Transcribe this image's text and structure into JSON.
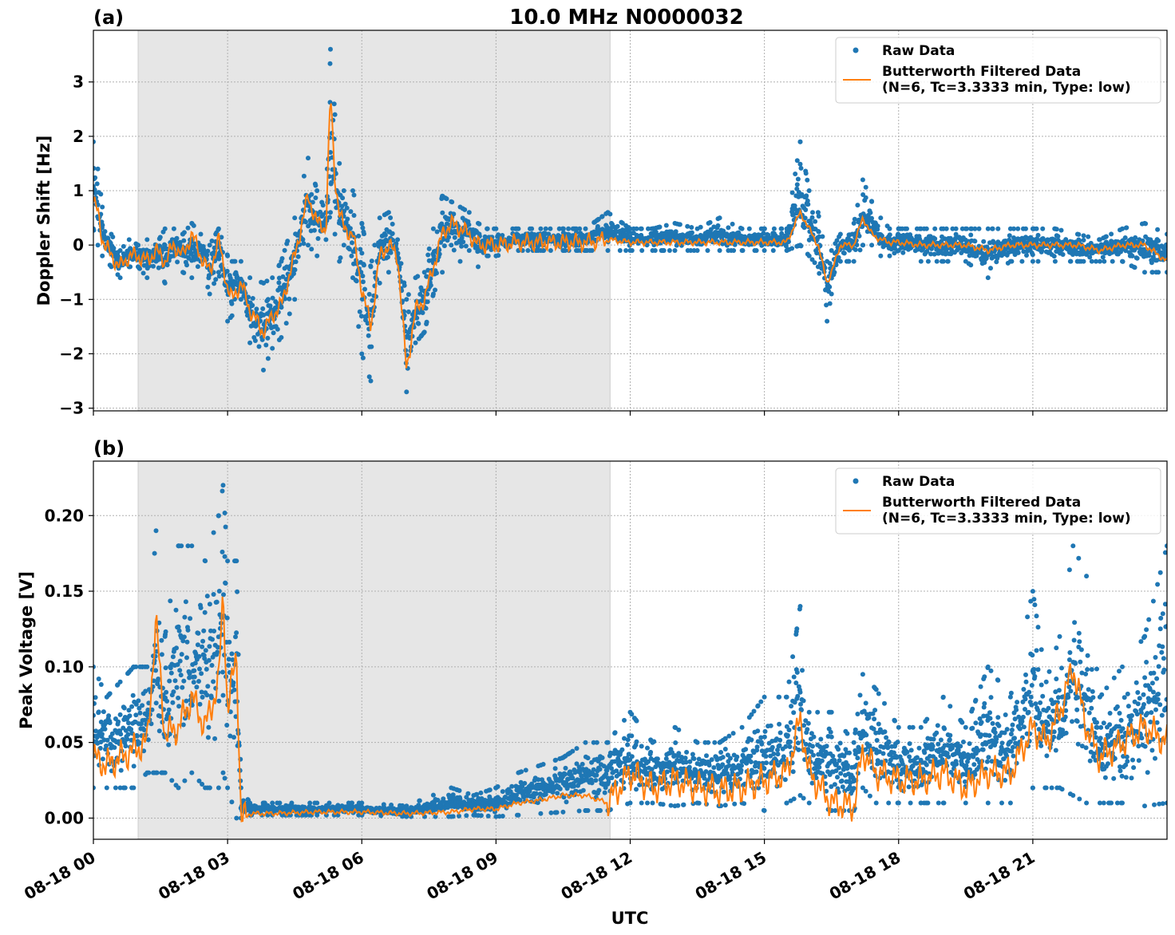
{
  "figure": {
    "title": "10.0 MHz N0000032",
    "xlabel": "UTC"
  },
  "chart_data": [
    {
      "panel_label": "(a)",
      "type": "scatter",
      "title": "10.0 MHz N0000032",
      "ylabel": "Doppler Shift [Hz]",
      "xlabel": "UTC",
      "xlim_hours": [
        0,
        24
      ],
      "ylim": [
        -3.05,
        3.95
      ],
      "yticks": [
        {
          "value": 3,
          "label": "3"
        },
        {
          "value": 2,
          "label": "2"
        },
        {
          "value": 1,
          "label": "1"
        },
        {
          "value": 0,
          "label": "0"
        },
        {
          "value": -1,
          "label": "−1"
        },
        {
          "value": -2,
          "label": "−2"
        },
        {
          "value": -3,
          "label": "−3"
        }
      ],
      "shaded_span_hours": [
        1.0,
        11.55
      ],
      "grid": true,
      "legend_placement": "top-right",
      "series": [
        {
          "name": "Raw Data",
          "kind": "scatter",
          "color": "#1f77b4",
          "x_hours": [
            0.0,
            0.1,
            0.2,
            0.4,
            0.6,
            0.8,
            1.0,
            1.2,
            1.4,
            1.6,
            1.8,
            2.0,
            2.2,
            2.4,
            2.6,
            2.8,
            3.0,
            3.1,
            3.3,
            3.5,
            3.8,
            4.0,
            4.2,
            4.5,
            4.8,
            5.0,
            5.2,
            5.3,
            5.4,
            5.5,
            5.6,
            5.8,
            6.0,
            6.2,
            6.4,
            6.6,
            6.8,
            7.0,
            7.2,
            7.4,
            7.6,
            7.8,
            8.0,
            8.2,
            8.4,
            8.6,
            8.8,
            9.0,
            9.5,
            10.0,
            10.5,
            11.0,
            11.5,
            12.0,
            12.5,
            13.0,
            13.5,
            14.0,
            14.5,
            15.0,
            15.5,
            15.8,
            16.0,
            16.2,
            16.4,
            16.5,
            16.7,
            17.0,
            17.2,
            17.4,
            17.6,
            17.8,
            18.0,
            18.5,
            19.0,
            19.5,
            20.0,
            20.5,
            21.0,
            21.5,
            22.0,
            22.5,
            23.0,
            23.5,
            24.0
          ],
          "y_low": [
            0.3,
            0.0,
            -0.2,
            -0.4,
            -0.6,
            -0.4,
            -0.4,
            -0.6,
            -0.3,
            -0.7,
            -0.2,
            -0.5,
            -0.6,
            -0.3,
            -0.9,
            -0.5,
            -1.4,
            -1.3,
            -1.0,
            -1.8,
            -2.3,
            -1.9,
            -1.7,
            -1.0,
            0.0,
            -0.2,
            0.1,
            0.6,
            0.2,
            -0.3,
            0.0,
            -0.6,
            -2.0,
            -2.5,
            -0.7,
            -0.5,
            -0.3,
            -2.7,
            -1.8,
            -1.6,
            -0.9,
            -0.5,
            0.0,
            -0.3,
            -0.1,
            -0.4,
            -0.2,
            -0.2,
            -0.1,
            -0.1,
            -0.1,
            -0.1,
            -0.1,
            -0.1,
            -0.1,
            -0.1,
            -0.1,
            -0.1,
            -0.1,
            -0.1,
            -0.1,
            0.0,
            -0.2,
            -0.4,
            -1.4,
            -0.9,
            -0.3,
            -0.3,
            0.0,
            0.0,
            -0.2,
            -0.2,
            -0.1,
            -0.3,
            -0.3,
            -0.3,
            -0.6,
            -0.3,
            -0.3,
            -0.3,
            -0.3,
            -0.3,
            -0.3,
            -0.5,
            -0.5
          ],
          "y_high": [
            1.9,
            1.4,
            0.7,
            0.2,
            -0.1,
            0.1,
            0.0,
            0.1,
            0.0,
            0.3,
            0.3,
            0.2,
            0.4,
            0.2,
            0.0,
            0.3,
            -0.2,
            -0.3,
            -0.3,
            -0.6,
            -0.7,
            -0.6,
            -0.3,
            0.5,
            1.6,
            1.0,
            0.6,
            3.6,
            2.4,
            1.5,
            1.0,
            1.0,
            0.4,
            -0.4,
            0.5,
            0.6,
            0.1,
            -1.0,
            -0.6,
            -0.5,
            0.3,
            0.9,
            0.8,
            0.7,
            0.6,
            0.4,
            0.3,
            0.3,
            0.3,
            0.3,
            0.3,
            0.3,
            0.6,
            0.3,
            0.3,
            0.4,
            0.3,
            0.5,
            0.3,
            0.3,
            0.3,
            1.9,
            1.0,
            0.6,
            -0.3,
            -0.1,
            0.2,
            0.4,
            1.2,
            0.8,
            0.5,
            0.3,
            0.3,
            0.3,
            0.3,
            0.3,
            0.3,
            0.3,
            0.3,
            0.3,
            0.2,
            0.1,
            0.3,
            0.4,
            0.2
          ]
        },
        {
          "name": "Butterworth Filtered Data\n(N=6, Tc=3.3333 min, Type: low)",
          "kind": "line",
          "color": "#ff7f0e",
          "x_hours": [
            0.0,
            0.1,
            0.2,
            0.4,
            0.6,
            0.8,
            1.0,
            1.2,
            1.4,
            1.6,
            1.8,
            2.0,
            2.2,
            2.4,
            2.6,
            2.8,
            3.0,
            3.1,
            3.3,
            3.5,
            3.8,
            4.0,
            4.2,
            4.5,
            4.8,
            5.0,
            5.2,
            5.3,
            5.4,
            5.5,
            5.6,
            5.8,
            6.0,
            6.2,
            6.4,
            6.6,
            6.8,
            7.0,
            7.2,
            7.4,
            7.6,
            7.8,
            8.0,
            8.2,
            8.4,
            8.6,
            8.8,
            9.0,
            9.5,
            10.0,
            10.5,
            11.0,
            11.5,
            12.0,
            12.5,
            13.0,
            13.5,
            14.0,
            14.5,
            15.0,
            15.5,
            15.8,
            16.0,
            16.2,
            16.4,
            16.5,
            16.7,
            17.0,
            17.2,
            17.4,
            17.6,
            17.8,
            18.0,
            18.5,
            19.0,
            19.5,
            20.0,
            20.5,
            21.0,
            21.5,
            22.0,
            22.5,
            23.0,
            23.5,
            24.0
          ],
          "values": [
            0.8,
            0.6,
            0.1,
            -0.2,
            -0.4,
            -0.2,
            -0.2,
            -0.3,
            -0.1,
            -0.3,
            0.0,
            -0.2,
            0.2,
            -0.2,
            -0.5,
            0.1,
            -0.8,
            -1.0,
            -0.7,
            -1.2,
            -1.6,
            -1.3,
            -1.1,
            -0.2,
            0.9,
            0.4,
            0.3,
            2.8,
            1.2,
            0.6,
            0.3,
            0.2,
            -0.8,
            -1.5,
            -0.2,
            0.0,
            -0.2,
            -2.3,
            -1.2,
            -1.0,
            -0.4,
            0.2,
            0.4,
            0.3,
            0.2,
            0.0,
            0.0,
            0.0,
            0.05,
            0.05,
            0.05,
            0.05,
            0.1,
            0.05,
            0.05,
            0.05,
            0.05,
            0.05,
            0.05,
            0.05,
            0.05,
            0.6,
            0.3,
            0.0,
            -0.7,
            -0.5,
            0.0,
            0.0,
            0.5,
            0.2,
            0.1,
            0.05,
            0.05,
            0.0,
            0.0,
            0.0,
            -0.1,
            0.0,
            0.0,
            0.0,
            0.0,
            -0.1,
            0.0,
            0.0,
            -0.3
          ]
        }
      ]
    },
    {
      "panel_label": "(b)",
      "type": "scatter",
      "ylabel": "Peak Voltage [V]",
      "xlabel": "UTC",
      "xlim_hours": [
        0,
        24
      ],
      "ylim": [
        -0.014,
        0.236
      ],
      "yticks": [
        {
          "value": 0.2,
          "label": "0.20"
        },
        {
          "value": 0.15,
          "label": "0.15"
        },
        {
          "value": 0.1,
          "label": "0.10"
        },
        {
          "value": 0.05,
          "label": "0.05"
        },
        {
          "value": 0.0,
          "label": "0.00"
        }
      ],
      "xticks": [
        {
          "hour": 0,
          "label": "08-18 00"
        },
        {
          "hour": 3,
          "label": "08-18 03"
        },
        {
          "hour": 6,
          "label": "08-18 06"
        },
        {
          "hour": 9,
          "label": "08-18 09"
        },
        {
          "hour": 12,
          "label": "08-18 12"
        },
        {
          "hour": 15,
          "label": "08-18 15"
        },
        {
          "hour": 18,
          "label": "08-18 18"
        },
        {
          "hour": 21,
          "label": "08-18 21"
        }
      ],
      "shaded_span_hours": [
        1.0,
        11.55
      ],
      "grid": true,
      "legend_placement": "top-right",
      "series": [
        {
          "name": "Raw Data",
          "kind": "scatter",
          "color": "#1f77b4",
          "x_hours": [
            0.0,
            0.3,
            0.6,
            0.9,
            1.2,
            1.4,
            1.6,
            1.9,
            2.2,
            2.5,
            2.8,
            2.9,
            3.0,
            3.2,
            3.3,
            3.5,
            4.0,
            5.0,
            6.0,
            7.0,
            8.0,
            8.5,
            9.0,
            9.5,
            10.0,
            10.5,
            11.0,
            11.5,
            12.0,
            12.5,
            13.0,
            13.5,
            14.0,
            14.5,
            15.0,
            15.5,
            15.8,
            16.0,
            16.5,
            17.0,
            17.2,
            17.5,
            18.0,
            18.5,
            19.0,
            19.5,
            20.0,
            20.5,
            21.0,
            21.3,
            21.6,
            21.9,
            22.2,
            22.5,
            23.0,
            23.5,
            24.0
          ],
          "y_low": [
            0.02,
            0.02,
            0.02,
            0.02,
            0.03,
            0.03,
            0.03,
            0.02,
            0.03,
            0.02,
            0.02,
            0.03,
            0.02,
            0.0,
            0.0,
            0.002,
            0.002,
            0.002,
            0.002,
            0.001,
            0.001,
            0.002,
            0.001,
            0.002,
            0.003,
            0.004,
            0.005,
            0.005,
            0.01,
            0.01,
            0.008,
            0.01,
            0.008,
            0.01,
            0.005,
            0.01,
            0.015,
            0.01,
            0.005,
            0.005,
            0.02,
            0.01,
            0.01,
            0.01,
            0.01,
            0.01,
            0.01,
            0.01,
            0.02,
            0.02,
            0.02,
            0.015,
            0.01,
            0.01,
            0.01,
            0.008,
            0.01
          ],
          "y_high": [
            0.1,
            0.08,
            0.09,
            0.1,
            0.1,
            0.19,
            0.12,
            0.18,
            0.18,
            0.17,
            0.2,
            0.22,
            0.17,
            0.17,
            0.02,
            0.01,
            0.01,
            0.01,
            0.01,
            0.008,
            0.02,
            0.015,
            0.02,
            0.03,
            0.035,
            0.04,
            0.05,
            0.05,
            0.07,
            0.05,
            0.06,
            0.05,
            0.05,
            0.06,
            0.08,
            0.08,
            0.14,
            0.07,
            0.07,
            0.05,
            0.095,
            0.085,
            0.06,
            0.06,
            0.08,
            0.06,
            0.1,
            0.08,
            0.15,
            0.09,
            0.12,
            0.18,
            0.16,
            0.08,
            0.1,
            0.12,
            0.18
          ]
        },
        {
          "name": "Butterworth Filtered Data\n(N=6, Tc=3.3333 min, Type: low)",
          "kind": "line",
          "color": "#ff7f0e",
          "x_hours": [
            0.0,
            0.3,
            0.6,
            0.9,
            1.2,
            1.4,
            1.6,
            1.9,
            2.2,
            2.5,
            2.8,
            2.9,
            3.0,
            3.2,
            3.3,
            3.5,
            4.0,
            5.0,
            6.0,
            7.0,
            8.0,
            8.5,
            9.0,
            9.5,
            10.0,
            10.5,
            11.0,
            11.5,
            12.0,
            12.5,
            13.0,
            13.5,
            14.0,
            14.5,
            15.0,
            15.5,
            15.8,
            16.0,
            16.5,
            17.0,
            17.2,
            17.5,
            18.0,
            18.5,
            19.0,
            19.5,
            20.0,
            20.5,
            21.0,
            21.3,
            21.6,
            21.9,
            22.2,
            22.5,
            23.0,
            23.5,
            24.0
          ],
          "values": [
            0.04,
            0.035,
            0.04,
            0.045,
            0.05,
            0.13,
            0.055,
            0.06,
            0.08,
            0.06,
            0.09,
            0.15,
            0.07,
            0.11,
            -0.002,
            0.003,
            0.003,
            0.004,
            0.004,
            0.003,
            0.004,
            0.006,
            0.006,
            0.01,
            0.012,
            0.015,
            0.015,
            0.01,
            0.03,
            0.02,
            0.025,
            0.02,
            0.018,
            0.02,
            0.025,
            0.03,
            0.065,
            0.03,
            0.01,
            0.008,
            0.045,
            0.03,
            0.025,
            0.025,
            0.03,
            0.02,
            0.03,
            0.03,
            0.06,
            0.05,
            0.07,
            0.1,
            0.06,
            0.04,
            0.05,
            0.06,
            0.05
          ]
        }
      ]
    }
  ]
}
